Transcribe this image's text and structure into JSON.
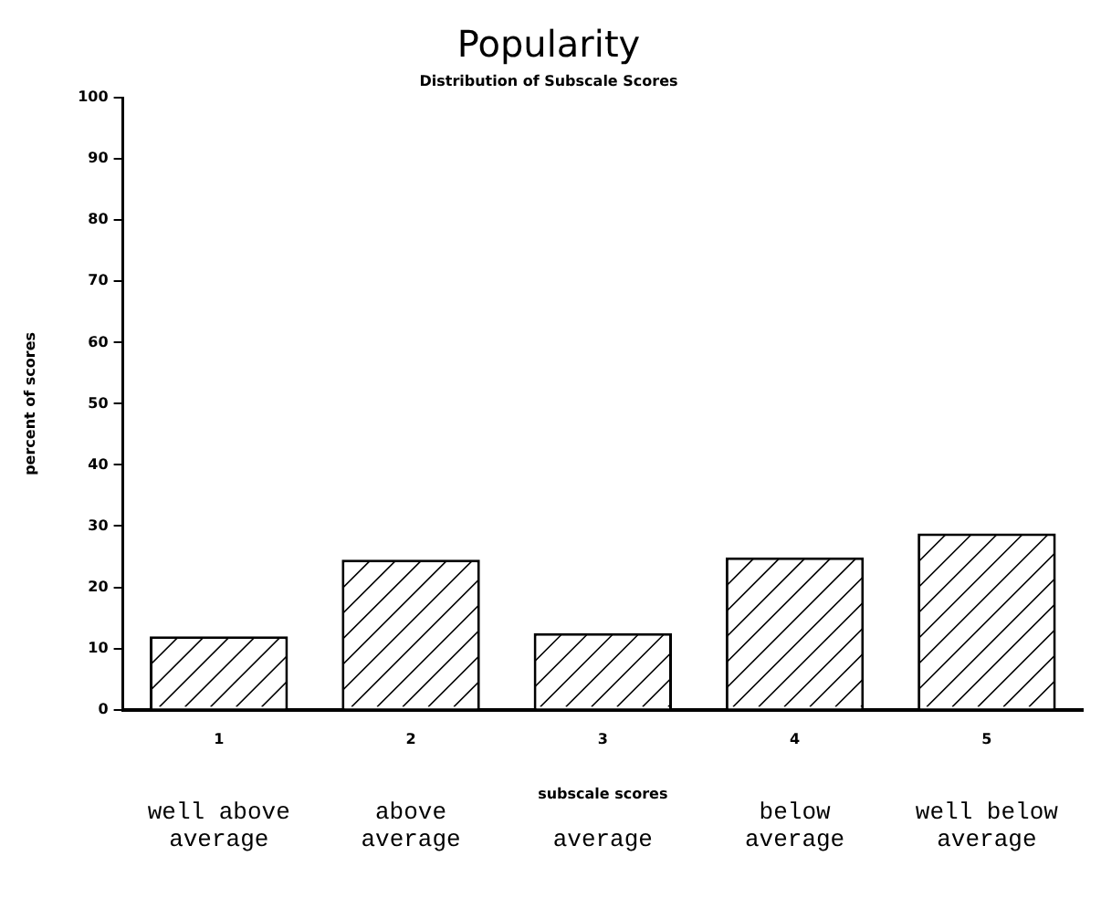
{
  "chart_data": {
    "type": "bar",
    "title": "Popularity",
    "subtitle": "Distribution of Subscale Scores",
    "xlabel": "subscale scores",
    "ylabel": "percent of scores",
    "categories": [
      "1",
      "2",
      "3",
      "4",
      "5"
    ],
    "values": [
      12.0,
      24.5,
      12.5,
      24.9,
      28.8
    ],
    "color": "#ffffff",
    "ylim": [
      0,
      100
    ],
    "yticks": [
      0,
      10,
      20,
      30,
      40,
      50,
      60,
      70,
      80,
      90,
      100
    ],
    "grid": false,
    "legend": false,
    "annotations": [
      "well above average",
      "above average",
      "average",
      "below average",
      "well below average"
    ]
  }
}
